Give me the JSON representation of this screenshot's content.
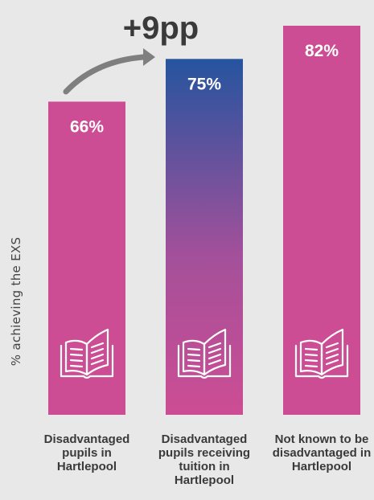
{
  "chart_data": {
    "type": "bar",
    "title": "",
    "ylabel": "% achieving the EXS",
    "xlabel": "",
    "ylim": [
      0,
      90
    ],
    "categories": [
      "Disadvantaged pupils in Hartlepool",
      "Disadvantaged pupils receiving tuition in Hartlepool",
      "Not known to be disadvantaged in Hartlepool"
    ],
    "values": [
      66,
      75,
      82
    ],
    "data_labels": [
      "66%",
      "75%",
      "82%"
    ],
    "annotation": "+9pp",
    "grid": false,
    "legend": "none"
  },
  "colors": {
    "background": "#e8e8e9",
    "bar": "#cd4d94",
    "highlight_top": "#25549f",
    "highlight_bottom": "#cd4d94",
    "annotation_text": "#3a3a3a",
    "arrow": "#7f7f7f",
    "label_text": "#ffffff"
  },
  "icons": [
    "open-book-icon",
    "open-book-icon",
    "open-book-icon"
  ]
}
